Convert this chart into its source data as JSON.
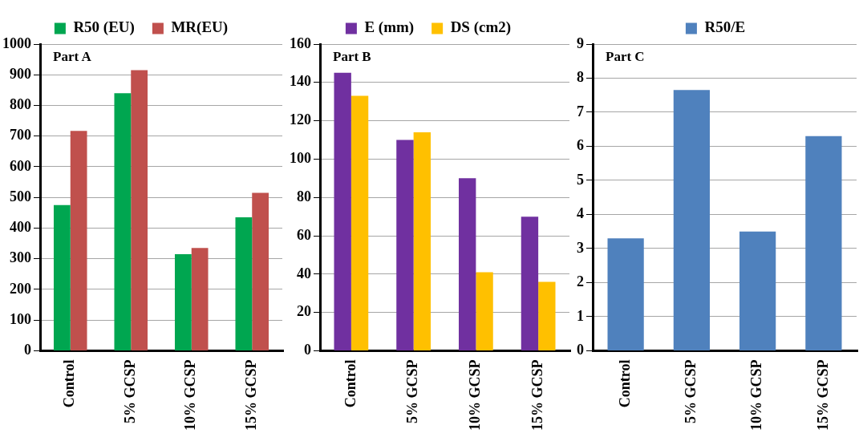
{
  "chart_data": [
    {
      "type": "bar",
      "title": "Part A",
      "categories": [
        "Control",
        "5% GCSP",
        "10% GCSP",
        "15% GCSP"
      ],
      "series": [
        {
          "name": "R50 (EU)",
          "color": "#00a650",
          "values": [
            475,
            840,
            315,
            435
          ]
        },
        {
          "name": "MR(EU)",
          "color": "#c0504d",
          "values": [
            717,
            915,
            335,
            515
          ]
        }
      ],
      "ylim": [
        0,
        1000
      ],
      "yticks": [
        0,
        100,
        200,
        300,
        400,
        500,
        600,
        700,
        800,
        900,
        1000
      ],
      "grid": "y",
      "legend": "top"
    },
    {
      "type": "bar",
      "title": "Part B",
      "categories": [
        "Control",
        "5% GCSP",
        "10% GCSP",
        "15% GCSP"
      ],
      "series": [
        {
          "name": "E (mm)",
          "color": "#7030a0",
          "values": [
            145,
            110,
            90,
            70
          ]
        },
        {
          "name": "DS (cm2)",
          "color": "#ffc000",
          "values": [
            133,
            114,
            41,
            36
          ]
        }
      ],
      "ylim": [
        0,
        160
      ],
      "yticks": [
        0,
        20,
        40,
        60,
        80,
        100,
        120,
        140,
        160
      ],
      "grid": "y",
      "legend": "top"
    },
    {
      "type": "bar",
      "title": "Part C",
      "categories": [
        "Control",
        "5% GCSP",
        "10% GCSP",
        "15% GCSP"
      ],
      "series": [
        {
          "name": "R50/E",
          "color": "#4f81bd",
          "values": [
            3.3,
            7.65,
            3.5,
            6.3
          ]
        }
      ],
      "ylim": [
        0,
        9
      ],
      "yticks": [
        0,
        1,
        2,
        3,
        4,
        5,
        6,
        7,
        8,
        9
      ],
      "grid": "y",
      "legend": "top"
    }
  ]
}
